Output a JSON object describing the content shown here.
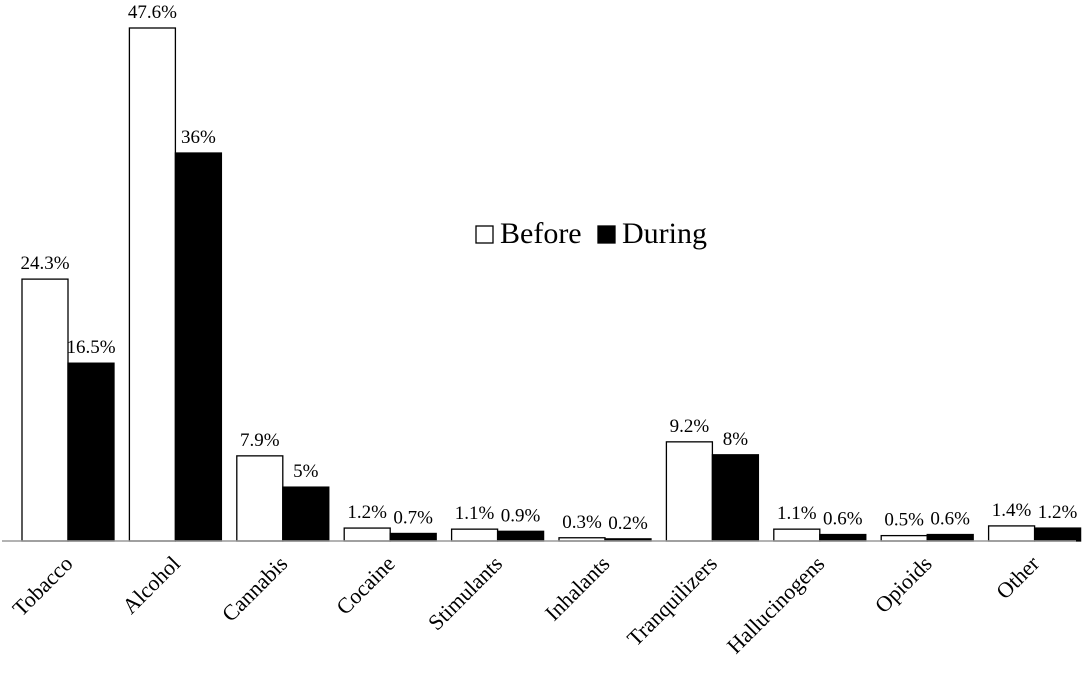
{
  "chart_data": {
    "type": "bar",
    "categories": [
      "Tobacco",
      "Alcohol",
      "Cannabis",
      "Cocaine",
      "Stimulants",
      "Inhalants",
      "Tranquilizers",
      "Hallucinogens",
      "Opioids",
      "Other"
    ],
    "series": [
      {
        "name": "Before",
        "values": [
          24.3,
          47.6,
          7.9,
          1.2,
          1.1,
          0.3,
          9.2,
          1.1,
          0.5,
          1.4
        ],
        "labels": [
          "24.3%",
          "47.6%",
          "7.9%",
          "1.2%",
          "1.1%",
          "0.3%",
          "9.2%",
          "1.1%",
          "0.5%",
          "1.4%"
        ],
        "color": "#ffffff"
      },
      {
        "name": "During",
        "values": [
          16.5,
          36,
          5,
          0.7,
          0.9,
          0.2,
          8,
          0.6,
          0.6,
          1.2
        ],
        "labels": [
          "16.5%",
          "36%",
          "5%",
          "0.7%",
          "0.9%",
          "0.2%",
          "8%",
          "0.6%",
          "0.6%",
          "1.2%"
        ],
        "color": "#000000"
      }
    ],
    "title": "",
    "xlabel": "",
    "ylabel": "",
    "ylim": [
      0,
      47.6
    ],
    "grid": false,
    "legend_position": "center"
  }
}
